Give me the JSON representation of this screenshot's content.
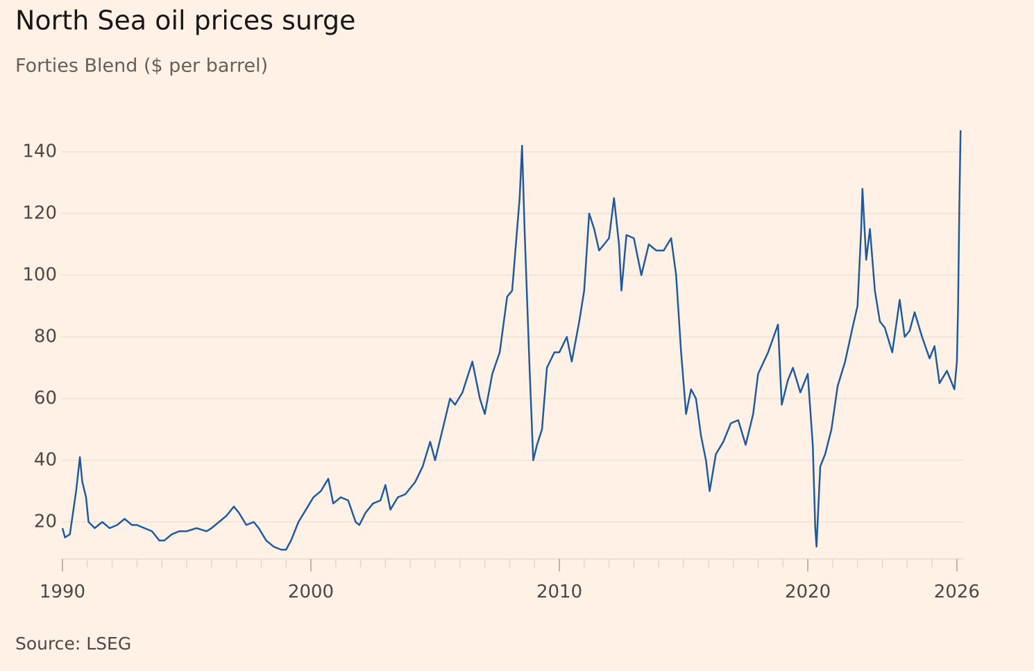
{
  "chart_data": {
    "type": "line",
    "title": "North Sea oil prices surge",
    "subtitle": "Forties Blend ($ per barrel)",
    "source": "Source: LSEG",
    "color": "#1d5aa0",
    "grid": true,
    "xlim": [
      1990,
      2026.3
    ],
    "ylim": [
      8,
      150
    ],
    "xticks": [
      1990,
      2000,
      2010,
      2020,
      2026
    ],
    "xminorticks": [
      1990,
      1991,
      1992,
      1993,
      1994,
      1995,
      1996,
      1997,
      1998,
      1999,
      2000,
      2001,
      2002,
      2003,
      2004,
      2005,
      2006,
      2007,
      2008,
      2009,
      2010,
      2011,
      2012,
      2013,
      2014,
      2015,
      2016,
      2017,
      2018,
      2019,
      2020,
      2021,
      2022,
      2023,
      2024,
      2025,
      2026
    ],
    "yticks": [
      20,
      40,
      60,
      80,
      100,
      120,
      140
    ],
    "x": [
      1990.0,
      1990.1,
      1990.3,
      1990.55,
      1990.7,
      1990.8,
      1990.95,
      1991.05,
      1991.3,
      1991.6,
      1991.9,
      1992.2,
      1992.5,
      1992.8,
      1993.0,
      1993.3,
      1993.6,
      1993.9,
      1994.1,
      1994.4,
      1994.7,
      1995.0,
      1995.4,
      1995.8,
      1996.0,
      1996.3,
      1996.6,
      1996.9,
      1997.1,
      1997.4,
      1997.7,
      1997.9,
      1998.2,
      1998.5,
      1998.8,
      1999.0,
      1999.2,
      1999.5,
      1999.8,
      2000.1,
      2000.4,
      2000.7,
      2000.9,
      2001.2,
      2001.5,
      2001.8,
      2001.95,
      2002.2,
      2002.5,
      2002.8,
      2003.0,
      2003.2,
      2003.5,
      2003.8,
      2004.2,
      2004.5,
      2004.8,
      2005.0,
      2005.3,
      2005.6,
      2005.8,
      2006.1,
      2006.5,
      2006.8,
      2007.0,
      2007.3,
      2007.6,
      2007.9,
      2008.1,
      2008.4,
      2008.5,
      2008.6,
      2008.8,
      2008.95,
      2009.1,
      2009.3,
      2009.5,
      2009.8,
      2010.0,
      2010.3,
      2010.5,
      2010.8,
      2011.0,
      2011.2,
      2011.4,
      2011.6,
      2011.8,
      2012.0,
      2012.2,
      2012.4,
      2012.5,
      2012.7,
      2013.0,
      2013.3,
      2013.6,
      2013.9,
      2014.2,
      2014.5,
      2014.7,
      2014.9,
      2015.1,
      2015.3,
      2015.5,
      2015.7,
      2015.9,
      2016.05,
      2016.3,
      2016.6,
      2016.9,
      2017.2,
      2017.5,
      2017.8,
      2018.0,
      2018.4,
      2018.8,
      2018.95,
      2019.2,
      2019.4,
      2019.7,
      2020.0,
      2020.2,
      2020.3,
      2020.35,
      2020.5,
      2020.7,
      2020.95,
      2021.2,
      2021.5,
      2021.8,
      2022.0,
      2022.15,
      2022.2,
      2022.35,
      2022.5,
      2022.7,
      2022.9,
      2023.1,
      2023.4,
      2023.7,
      2023.9,
      2024.1,
      2024.3,
      2024.6,
      2024.9,
      2025.1,
      2025.3,
      2025.6,
      2025.9,
      2026.0,
      2026.05,
      2026.1,
      2026.15
    ],
    "values": [
      18,
      15,
      16,
      30,
      41,
      33,
      28,
      20,
      18,
      20,
      18,
      19,
      21,
      19,
      19,
      18,
      17,
      14,
      14,
      16,
      17,
      17,
      18,
      17,
      18,
      20,
      22,
      25,
      23,
      19,
      20,
      18,
      14,
      12,
      11,
      11,
      14,
      20,
      24,
      28,
      30,
      34,
      26,
      28,
      27,
      20,
      19,
      23,
      26,
      27,
      32,
      24,
      28,
      29,
      33,
      38,
      46,
      40,
      50,
      60,
      58,
      62,
      72,
      60,
      55,
      68,
      75,
      93,
      95,
      125,
      142,
      115,
      70,
      40,
      45,
      50,
      70,
      75,
      75,
      80,
      72,
      85,
      95,
      120,
      115,
      108,
      110,
      112,
      125,
      110,
      95,
      113,
      112,
      100,
      110,
      108,
      108,
      112,
      100,
      75,
      55,
      63,
      60,
      48,
      40,
      30,
      42,
      46,
      52,
      53,
      45,
      55,
      68,
      75,
      84,
      58,
      66,
      70,
      62,
      68,
      45,
      18,
      12,
      38,
      42,
      50,
      64,
      72,
      83,
      90,
      115,
      128,
      105,
      115,
      95,
      85,
      83,
      75,
      92,
      80,
      82,
      88,
      80,
      73,
      77,
      65,
      69,
      63,
      72,
      90,
      122,
      147
    ]
  }
}
